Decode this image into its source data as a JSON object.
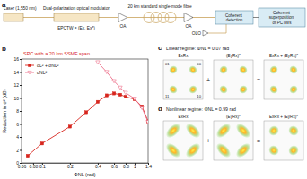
{
  "diagram": {
    "panel_label": "a",
    "laser": "Laser (1,550 nm)",
    "modulator": "Dual-polarization optical modulator",
    "signal": "EPCTW = (Ex, Ex*)",
    "amplifiers": [
      "OA",
      "OA"
    ],
    "fibre": "20 km standard single-mode fibre",
    "local_oscillator": "OLO",
    "detection": "Coherent detection",
    "superposition": "Coherent superposition of PCTWs"
  },
  "chart_data": {
    "type": "line",
    "title": "SPC with a 20 km SSMF span",
    "annotations": [
      "b"
    ],
    "xlabel": "ΦNL (rad)",
    "ylabel": "Reduction in σ² (dB)",
    "log": "x",
    "grid": false,
    "legend": "upper left",
    "xlim": [
      0.06,
      1.4
    ],
    "xticks": [
      0.06,
      0.08,
      0.1,
      0.2,
      0.4,
      0.6,
      0.8,
      1,
      1.4
    ],
    "ylim": [
      0,
      16
    ],
    "yticks": [
      0,
      2,
      4,
      6,
      8,
      10,
      12,
      14,
      16
    ],
    "series": [
      {
        "name": "σL² + σNL²",
        "color": "#d7261e",
        "marker": "square",
        "line_style": "solid",
        "x": [
          0.07,
          0.1,
          0.2,
          0.3,
          0.4,
          0.5,
          0.6,
          0.7,
          0.8,
          1,
          1.2,
          1.4
        ],
        "values": [
          1.1,
          3.0,
          5.6,
          7.8,
          9.4,
          10.4,
          10.7,
          10.5,
          10.2,
          9.8,
          8.7,
          6.4
        ]
      },
      {
        "name": "σNL²",
        "color": "#ec6f8a",
        "marker": "triangle-down",
        "line_style": "solid",
        "x": [
          0.4,
          0.5,
          0.6,
          0.7,
          0.8,
          1,
          1.2,
          1.4
        ],
        "values": [
          15.5,
          14.0,
          12.6,
          11.6,
          10.8,
          9.9,
          8.5,
          6.3
        ]
      }
    ]
  },
  "constellations": [
    {
      "panel_label": "c",
      "title": "Linear regime: ΦNL = 0.07 rad",
      "symbol_labels": [
        "01",
        "00",
        "11",
        "10"
      ],
      "plots": [
        {
          "title": "ExRx"
        },
        {
          "title": "(EyRx)*"
        },
        {
          "title": "ExRx + (EyRx)*"
        }
      ]
    },
    {
      "panel_label": "d",
      "title": "Nonlinear regime: ΦNL = 0.99 rad",
      "plots": [
        {
          "title": "ExRx"
        },
        {
          "title": "(EyRx)*"
        },
        {
          "title": "ExRx + (EyRx)*"
        }
      ]
    }
  ],
  "operators": [
    "+",
    "="
  ]
}
